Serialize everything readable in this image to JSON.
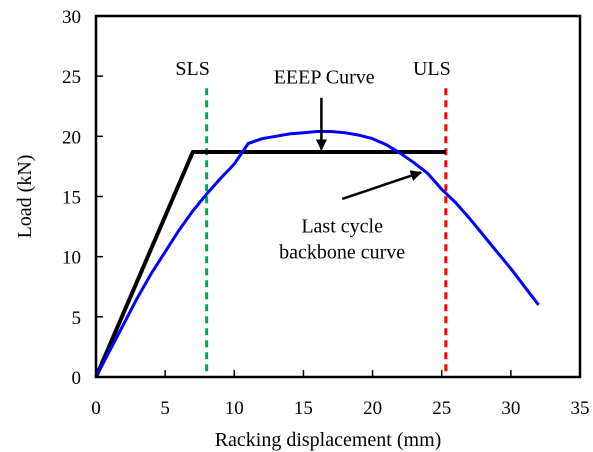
{
  "chart_data": {
    "type": "line",
    "xlabel": "Racking displacement (mm)",
    "ylabel": "Load (kN)",
    "xlim": [
      0,
      35
    ],
    "ylim": [
      0,
      30
    ],
    "xticks": [
      0,
      5,
      10,
      15,
      20,
      25,
      30,
      35
    ],
    "yticks": [
      0,
      5,
      10,
      15,
      20,
      25,
      30
    ],
    "grid": false,
    "colors": {
      "eeep": "#000000",
      "backbone": "#0000ff",
      "sls": "#00a651",
      "uls": "#ff0000"
    },
    "series": [
      {
        "key": "eeep",
        "x": [
          0,
          7.0,
          25.3
        ],
        "y": [
          0,
          18.7,
          18.7
        ]
      },
      {
        "key": "backbone",
        "x": [
          0,
          1,
          2,
          3,
          4,
          5,
          6,
          7,
          8,
          9,
          10,
          11,
          12,
          13,
          14,
          15,
          16,
          17,
          18,
          19,
          20,
          21,
          22,
          23,
          24,
          25,
          26,
          27,
          28,
          29,
          30,
          31,
          32
        ],
        "y": [
          0,
          2.2,
          4.4,
          6.6,
          8.6,
          10.4,
          12.2,
          13.8,
          15.2,
          16.5,
          17.7,
          19.4,
          19.8,
          20.0,
          20.2,
          20.3,
          20.4,
          20.4,
          20.3,
          20.1,
          19.8,
          19.3,
          18.6,
          17.8,
          16.9,
          15.6,
          14.5,
          13.2,
          11.8,
          10.4,
          9.0,
          7.5,
          6.0
        ]
      }
    ],
    "limits": [
      {
        "key": "sls",
        "label": "SLS",
        "x": 8.0
      },
      {
        "key": "uls",
        "label": "ULS",
        "x": 25.3
      }
    ],
    "annotations": [
      {
        "key": "eeep",
        "text": [
          "EEEP Curve"
        ],
        "anchor": [
          16.5,
          24.4
        ],
        "arrow_from": [
          16.3,
          23.2
        ],
        "arrow_to": [
          16.3,
          18.9
        ]
      },
      {
        "key": "backbone",
        "text": [
          "Last cycle",
          "backbone curve"
        ],
        "anchor": [
          17.8,
          12.0
        ],
        "arrow_from": [
          17.8,
          14.8
        ],
        "arrow_to": [
          23.5,
          17.0
        ]
      }
    ]
  }
}
